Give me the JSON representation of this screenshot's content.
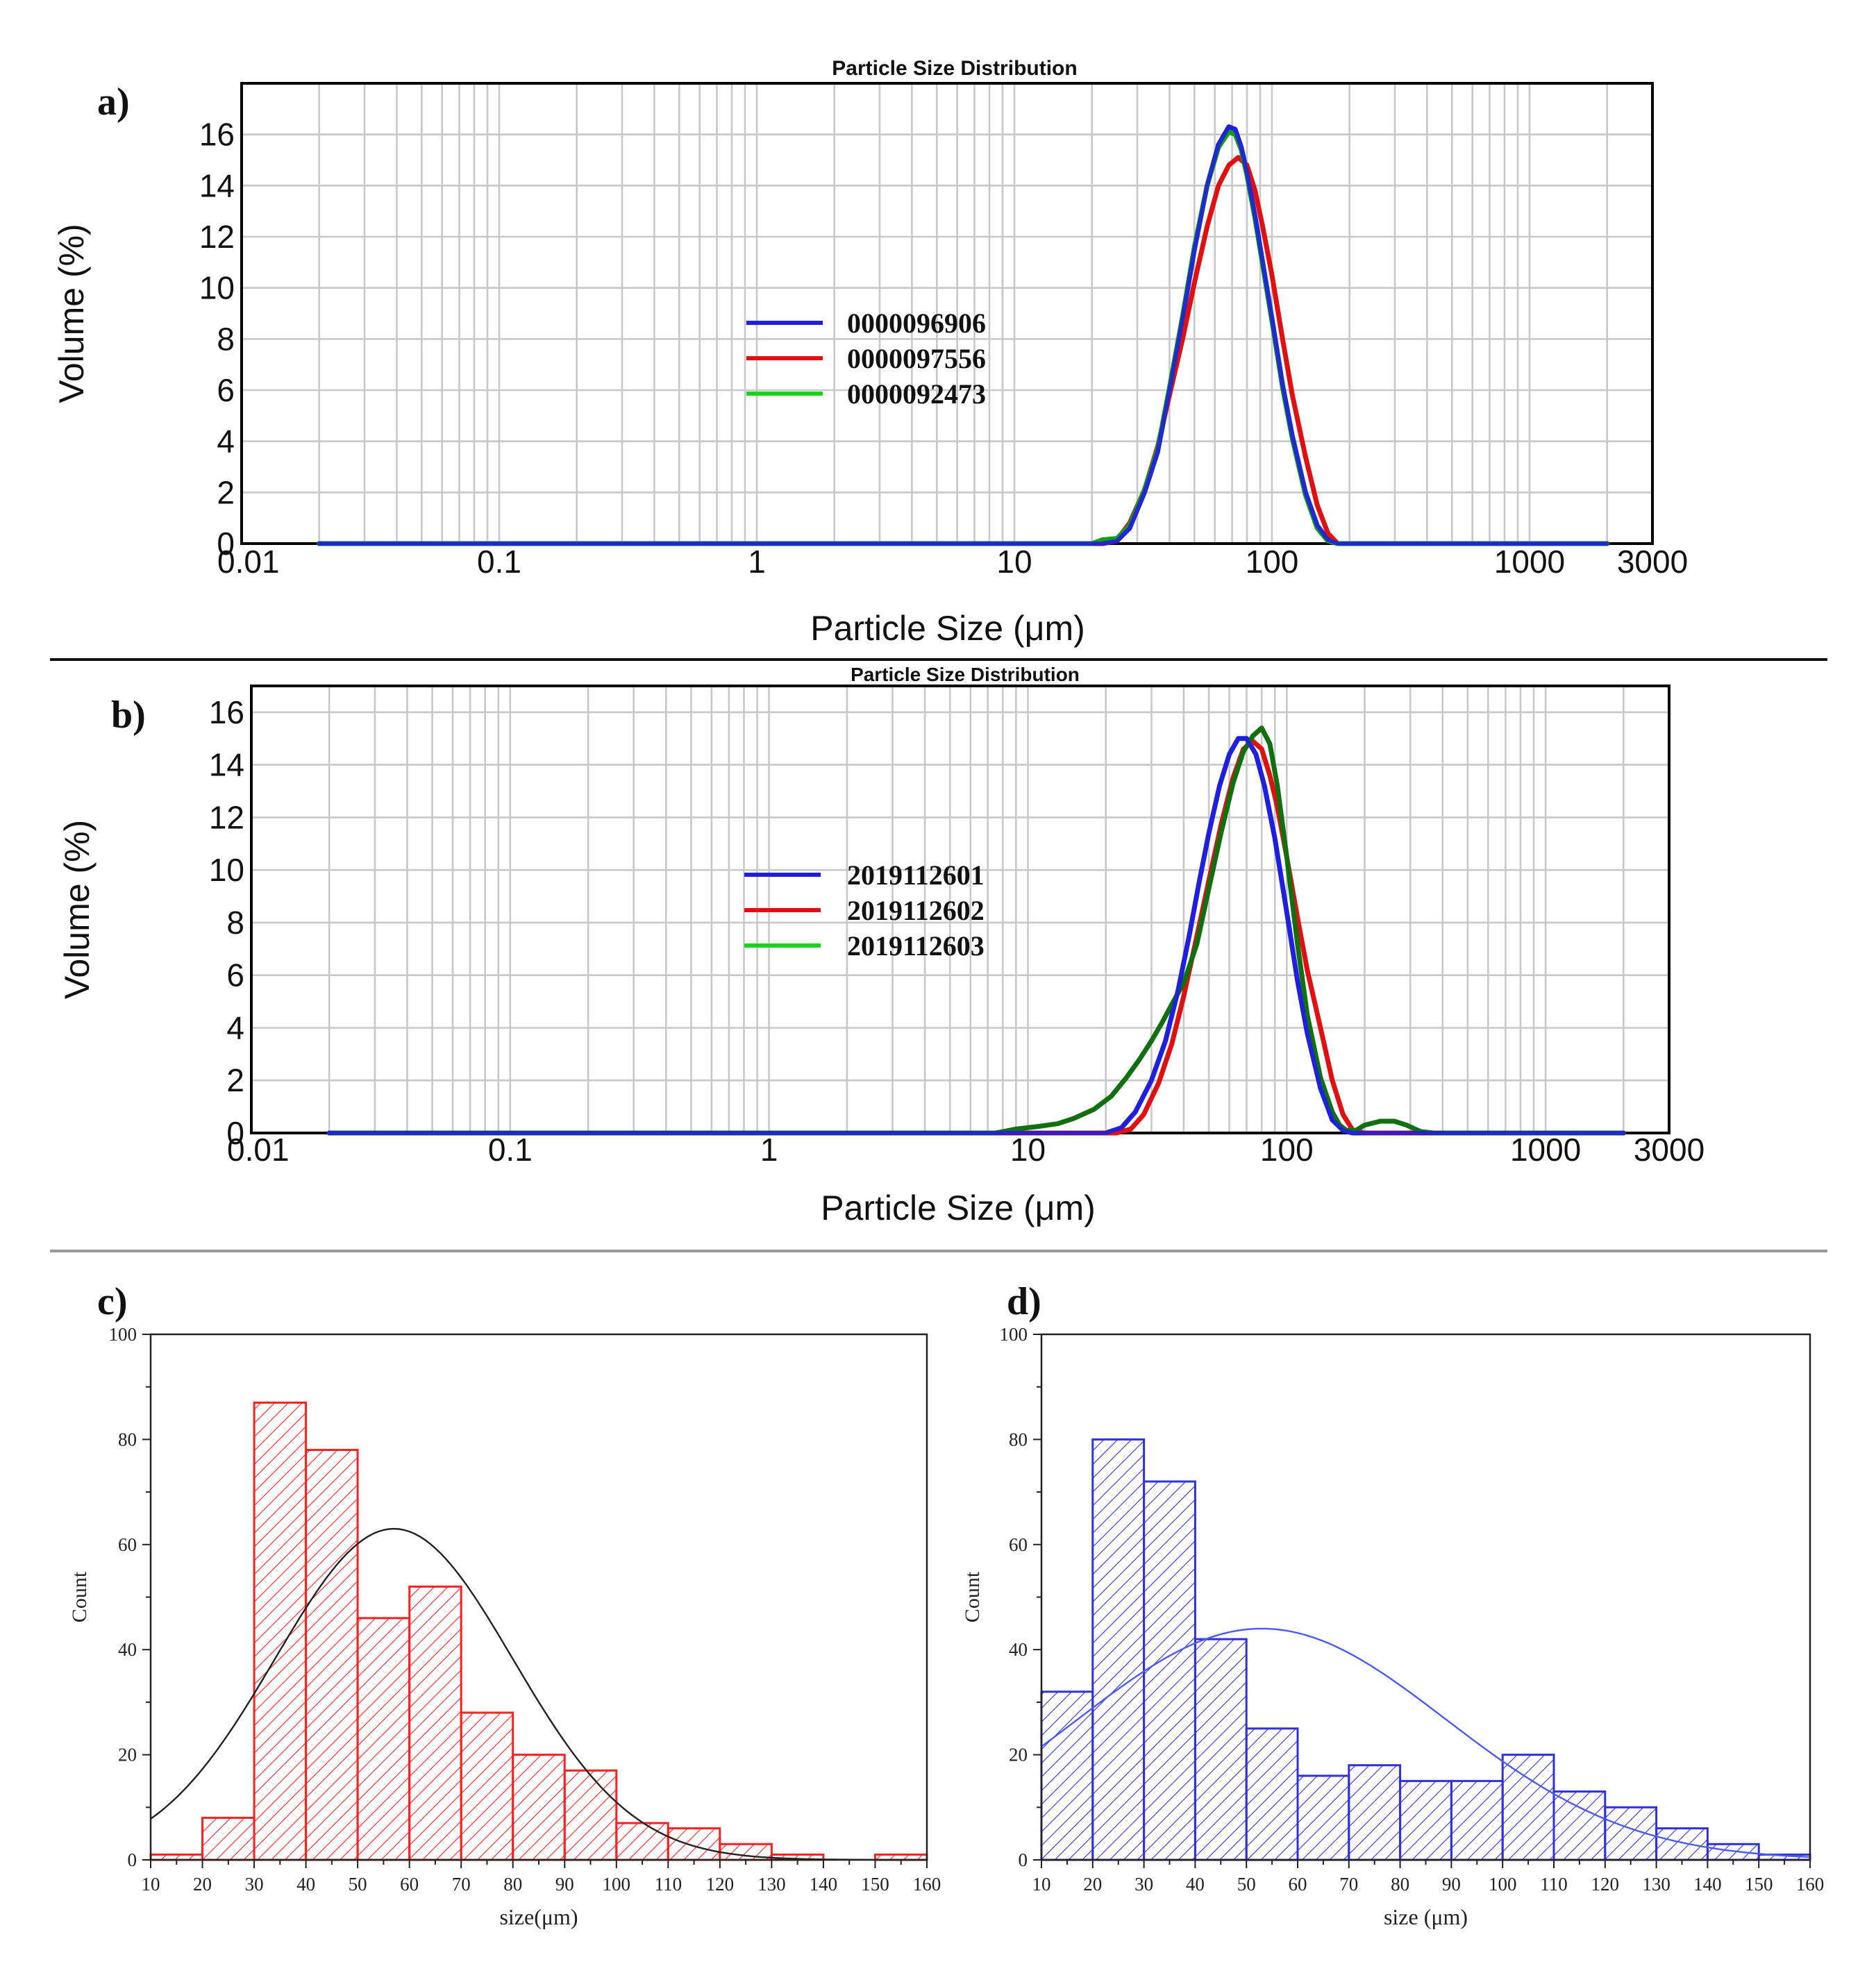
{
  "chart_data": [
    {
      "panel_label": "a)",
      "type": "line",
      "title": "Particle Size Distribution",
      "xlabel": "Particle Size (μm)",
      "ylabel": "Volume (%)",
      "xscale": "log",
      "xlim": [
        0.01,
        3000
      ],
      "ylim": [
        0,
        18
      ],
      "x_ticks": [
        0.01,
        0.1,
        1,
        10,
        100,
        1000,
        3000
      ],
      "x_tick_labels": [
        "0.01",
        "0.1",
        "1",
        "10",
        "100",
        "1000",
        "3000"
      ],
      "y_ticks": [
        0,
        2,
        4,
        6,
        8,
        10,
        12,
        14,
        16
      ],
      "y_tick_labels": [
        "0",
        "2",
        "4",
        "6",
        "8",
        "10",
        "12",
        "14",
        "16"
      ],
      "grid": true,
      "legend_position": "center-left",
      "series": [
        {
          "name": "0000096906",
          "color": "#1f1fe0",
          "x": [
            0.02,
            22,
            25,
            28,
            32,
            36,
            40,
            45,
            50,
            56,
            62,
            68,
            72,
            76,
            80,
            86,
            92,
            100,
            110,
            120,
            135,
            150,
            165,
            180,
            200,
            2000
          ],
          "y": [
            0,
            0,
            0.1,
            0.6,
            2,
            3.6,
            6,
            8.8,
            11.5,
            14,
            15.6,
            16.3,
            16.2,
            15.5,
            14.5,
            12.8,
            11,
            8.8,
            6.2,
            4.2,
            2,
            0.7,
            0.15,
            0,
            0,
            0
          ]
        },
        {
          "name": "0000097556",
          "color": "#e01010",
          "x": [
            0.02,
            22,
            25,
            28,
            32,
            36,
            40,
            45,
            50,
            56,
            62,
            68,
            74,
            80,
            86,
            92,
            100,
            110,
            120,
            135,
            150,
            165,
            180,
            200,
            2000
          ],
          "y": [
            0,
            0,
            0.15,
            0.8,
            2.1,
            3.8,
            5.8,
            8,
            10.2,
            12.4,
            14,
            14.8,
            15.1,
            14.8,
            13.8,
            12.4,
            10.5,
            8,
            5.8,
            3.4,
            1.5,
            0.4,
            0,
            0,
            0
          ]
        },
        {
          "name": "0000092473",
          "color": "#10a010",
          "x": [
            0.02,
            20,
            22,
            25,
            28,
            32,
            36,
            40,
            45,
            50,
            56,
            62,
            68,
            72,
            76,
            80,
            86,
            92,
            100,
            110,
            120,
            135,
            150,
            165,
            180,
            200,
            2000
          ],
          "y": [
            0,
            0,
            0.15,
            0.2,
            0.7,
            2.1,
            3.7,
            6.1,
            8.9,
            11.6,
            14,
            15.5,
            16.1,
            16,
            15.4,
            14.4,
            12.7,
            10.9,
            8.7,
            6.1,
            4.1,
            1.9,
            0.6,
            0.1,
            0,
            0,
            0
          ]
        }
      ]
    },
    {
      "panel_label": "b)",
      "type": "line",
      "title": "Particle Size Distribution",
      "xlabel": "Particle Size (μm)",
      "ylabel": "Volume (%)",
      "xscale": "log",
      "xlim": [
        0.01,
        3000
      ],
      "ylim": [
        0,
        17
      ],
      "x_ticks": [
        0.01,
        0.1,
        1,
        10,
        100,
        1000,
        3000
      ],
      "x_tick_labels": [
        "0.01",
        "0.1",
        "1",
        "10",
        "100",
        "1000",
        "3000"
      ],
      "y_ticks": [
        0,
        2,
        4,
        6,
        8,
        10,
        12,
        14,
        16
      ],
      "y_tick_labels": [
        "0",
        "2",
        "4",
        "6",
        "8",
        "10",
        "12",
        "14",
        "16"
      ],
      "grid": true,
      "legend_position": "center-left",
      "series": [
        {
          "name": "2019112601",
          "color": "#1f1fe0",
          "x": [
            0.02,
            20,
            23,
            26,
            30,
            34,
            38,
            42,
            46,
            50,
            55,
            60,
            65,
            70,
            76,
            82,
            90,
            100,
            110,
            120,
            135,
            150,
            165,
            180,
            200,
            2000
          ],
          "y": [
            0,
            0,
            0.2,
            0.8,
            2,
            3.5,
            5.4,
            7.5,
            9.6,
            11.4,
            13.2,
            14.4,
            15,
            15,
            14.4,
            13.2,
            11.2,
            8.4,
            5.8,
            3.8,
            1.7,
            0.5,
            0.1,
            0,
            0,
            0
          ]
        },
        {
          "name": "2019112602",
          "color": "#e01010",
          "x": [
            0.02,
            22,
            25,
            28,
            32,
            36,
            40,
            45,
            50,
            56,
            62,
            68,
            74,
            80,
            86,
            92,
            100,
            110,
            120,
            135,
            150,
            165,
            180,
            200,
            2000
          ],
          "y": [
            0,
            0,
            0.15,
            0.7,
            1.9,
            3.4,
            5.2,
            7.5,
            9.6,
            11.8,
            13.5,
            14.6,
            14.9,
            14.6,
            13.6,
            12.4,
            10.5,
            8.2,
            6.2,
            4,
            2,
            0.7,
            0.1,
            0,
            0
          ]
        },
        {
          "name": "2019112603",
          "color": "#107010",
          "x": [
            0.02,
            7.5,
            9,
            11,
            13,
            15,
            18,
            21,
            24,
            27,
            30,
            33,
            36,
            40,
            45,
            50,
            56,
            62,
            68,
            74,
            80,
            86,
            92,
            100,
            110,
            120,
            135,
            150,
            160,
            170,
            185,
            200,
            230,
            260,
            290,
            330,
            370,
            2000
          ],
          "y": [
            0,
            0,
            0.15,
            0.25,
            0.35,
            0.55,
            0.9,
            1.4,
            2.1,
            2.8,
            3.5,
            4.2,
            4.9,
            5.7,
            7.2,
            9.3,
            11.5,
            13.3,
            14.5,
            15.1,
            15.4,
            14.8,
            13.2,
            10.5,
            7.2,
            4.5,
            2.1,
            0.8,
            0.3,
            0.1,
            0.1,
            0.3,
            0.45,
            0.45,
            0.3,
            0.05,
            0,
            0
          ]
        }
      ]
    },
    {
      "panel_label": "c)",
      "type": "bar",
      "xlabel": "size(μm)",
      "ylabel": "Count",
      "xlim": [
        10,
        160
      ],
      "ylim": [
        0,
        100
      ],
      "bin_width": 10,
      "categories": [
        "10-20",
        "20-30",
        "30-40",
        "40-50",
        "50-60",
        "60-70",
        "70-80",
        "80-90",
        "90-100",
        "100-110",
        "110-120",
        "120-130",
        "130-140",
        "140-150",
        "150-160"
      ],
      "bin_starts": [
        10,
        20,
        30,
        40,
        50,
        60,
        70,
        80,
        90,
        100,
        110,
        120,
        130,
        140,
        150
      ],
      "values": [
        1,
        8,
        87,
        78,
        46,
        52,
        28,
        20,
        17,
        7,
        6,
        3,
        1,
        0,
        1
      ],
      "x_ticks": [
        10,
        20,
        30,
        40,
        50,
        60,
        70,
        80,
        90,
        100,
        110,
        120,
        130,
        140,
        150,
        160
      ],
      "x_tick_labels": [
        "10",
        "20",
        "30",
        "40",
        "50",
        "60",
        "70",
        "80",
        "90",
        "100",
        "110",
        "120",
        "130",
        "140",
        "150",
        "160"
      ],
      "y_ticks": [
        0,
        20,
        40,
        60,
        80,
        100
      ],
      "y_tick_labels": [
        "0",
        "20",
        "40",
        "60",
        "80",
        "100"
      ],
      "color": "#ff2020",
      "fit_curve": {
        "type": "normal",
        "mean": 57,
        "peak": 63,
        "sigma": 23,
        "color": "#222222"
      }
    },
    {
      "panel_label": "d)",
      "type": "bar",
      "xlabel": "size (μm)",
      "ylabel": "Count",
      "xlim": [
        10,
        160
      ],
      "ylim": [
        0,
        100
      ],
      "bin_width": 10,
      "categories": [
        "10-20",
        "20-30",
        "30-40",
        "40-50",
        "50-60",
        "60-70",
        "70-80",
        "80-90",
        "90-100",
        "100-110",
        "110-120",
        "120-130",
        "130-140",
        "140-150",
        "150-160"
      ],
      "bin_starts": [
        10,
        20,
        30,
        40,
        50,
        60,
        70,
        80,
        90,
        100,
        110,
        120,
        130,
        140,
        150
      ],
      "values": [
        32,
        80,
        72,
        42,
        25,
        16,
        18,
        15,
        15,
        20,
        13,
        10,
        6,
        3,
        1
      ],
      "x_ticks": [
        10,
        20,
        30,
        40,
        50,
        60,
        70,
        80,
        90,
        100,
        110,
        120,
        130,
        140,
        150,
        160
      ],
      "x_tick_labels": [
        "10",
        "20",
        "30",
        "40",
        "50",
        "60",
        "70",
        "80",
        "90",
        "100",
        "110",
        "120",
        "130",
        "140",
        "150",
        "160"
      ],
      "y_ticks": [
        0,
        20,
        40,
        60,
        80,
        100
      ],
      "y_tick_labels": [
        "0",
        "20",
        "40",
        "60",
        "80",
        "100"
      ],
      "color": "#3030e0",
      "fit_curve": {
        "type": "normal",
        "mean": 53,
        "peak": 44,
        "sigma": 36,
        "color": "#4a5aff"
      }
    }
  ]
}
